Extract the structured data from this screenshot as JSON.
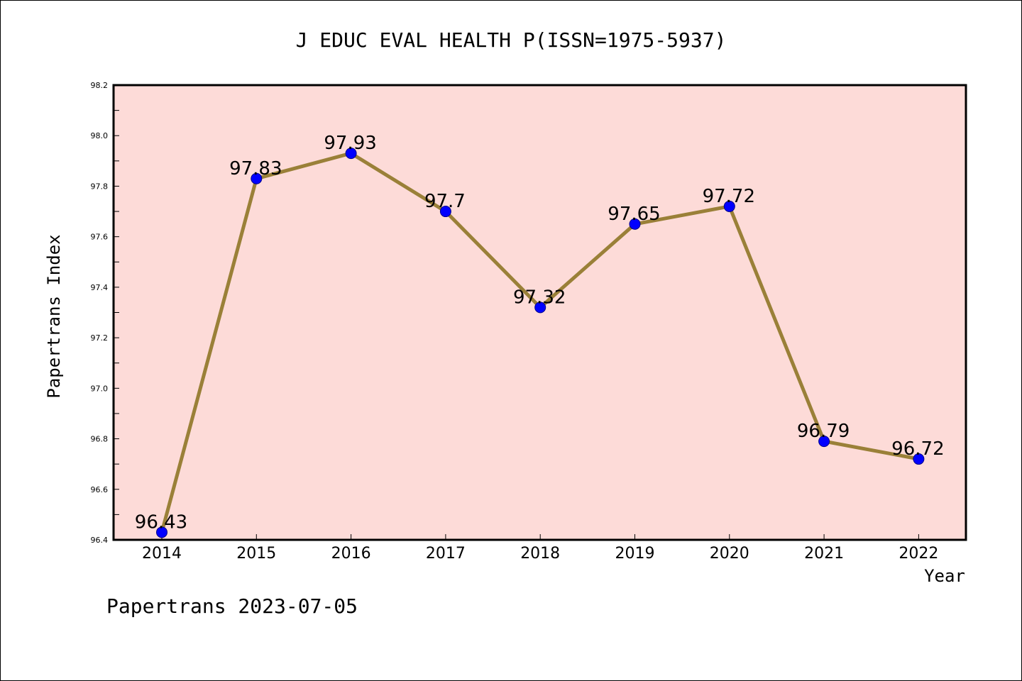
{
  "chart_data": {
    "type": "line",
    "title": "J EDUC EVAL HEALTH P(ISSN=1975-5937)",
    "xlabel": "Year",
    "ylabel": "Papertrans Index",
    "categories": [
      "2014",
      "2015",
      "2016",
      "2017",
      "2018",
      "2019",
      "2020",
      "2021",
      "2022"
    ],
    "values": [
      96.43,
      97.83,
      97.93,
      97.7,
      97.32,
      97.65,
      97.72,
      96.79,
      96.72
    ],
    "data_labels": [
      "96.43",
      "97.83",
      "97.93",
      "97.7",
      "97.32",
      "97.65",
      "97.72",
      "96.79",
      "96.72"
    ],
    "ylim": [
      96.4,
      98.2
    ],
    "yticks": [
      "96.4",
      "96.6",
      "96.8",
      "97.0",
      "97.2",
      "97.4",
      "97.6",
      "97.8",
      "98.0",
      "98.2"
    ],
    "grid": false,
    "legend": "none",
    "colors": {
      "plot_background": "#fddbd8",
      "line": "#9a8038",
      "marker": "#0000ff"
    }
  },
  "footer": "Papertrans 2023-07-05"
}
